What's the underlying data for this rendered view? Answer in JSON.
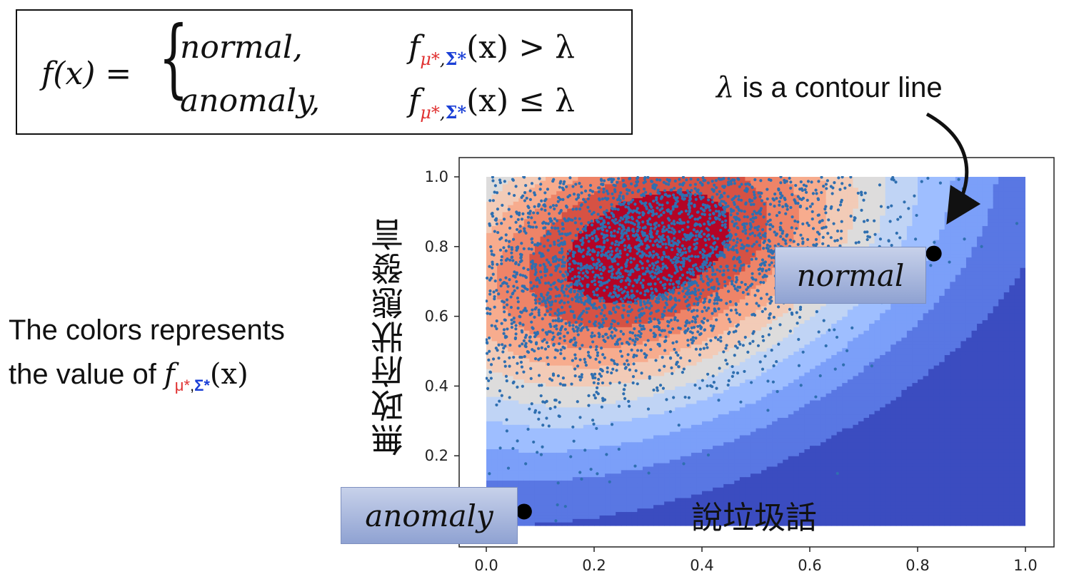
{
  "formula": {
    "lhs": "f(x) =",
    "row1_case": "normal,",
    "row2_case": "anomaly,",
    "f_symbol": "f",
    "mu_sub": "μ*",
    "comma": ",",
    "sigma_sub": "Σ*",
    "arg": "(x)",
    "row1_rel": "> λ",
    "row2_rel": "≤ λ"
  },
  "annotations": {
    "contour_lambda": "λ",
    "contour_text": "is a contour line",
    "colors_line1": "The colors represents",
    "colors_line2_prefix": "the value of",
    "normal_tag": "normal",
    "anomaly_tag": "anomaly"
  },
  "chart_data": {
    "type": "scatter",
    "title": "",
    "xlabel": "說垃圾話",
    "ylabel": "無政府狀態發言",
    "xlim": [
      0.0,
      1.0
    ],
    "ylim": [
      0.0,
      1.0
    ],
    "x_ticks": [
      "0.0",
      "0.2",
      "0.4",
      "0.6",
      "0.8",
      "1.0"
    ],
    "y_ticks": [
      "0.2",
      "0.4",
      "0.6",
      "0.8",
      "1.0"
    ],
    "background": "filled contour of Gaussian density (red = high, blue = low)",
    "gaussian_center": [
      0.3,
      0.8
    ],
    "marked_points": [
      {
        "label": "normal",
        "x": 0.83,
        "y": 0.78
      },
      {
        "label": "anomaly",
        "x": 0.07,
        "y": 0.04
      }
    ],
    "point_color": "#2f6fb0",
    "colors": {
      "high": "#b40426",
      "mid": "#dddddd",
      "low": "#3b4cc0"
    }
  }
}
